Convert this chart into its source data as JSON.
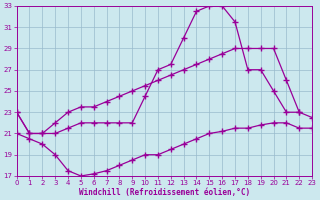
{
  "xlabel": "Windchill (Refroidissement éolien,°C)",
  "xlim": [
    0,
    23
  ],
  "ylim": [
    17,
    33
  ],
  "yticks": [
    17,
    19,
    21,
    23,
    25,
    27,
    29,
    31,
    33
  ],
  "xticks": [
    0,
    1,
    2,
    3,
    4,
    5,
    6,
    7,
    8,
    9,
    10,
    11,
    12,
    13,
    14,
    15,
    16,
    17,
    18,
    19,
    20,
    21,
    22,
    23
  ],
  "bg_color": "#cce8ee",
  "line_color": "#990099",
  "grid_color": "#99bbcc",
  "line1_x": [
    0,
    1,
    2,
    3,
    4,
    5,
    6,
    7,
    8,
    9,
    10,
    11,
    12,
    13,
    14,
    15,
    16,
    17,
    18,
    19,
    20,
    21,
    22
  ],
  "line1_y": [
    23,
    21,
    21,
    21,
    21.5,
    22,
    22,
    22,
    22,
    22,
    24.5,
    27,
    27.5,
    30,
    32.5,
    33,
    33,
    31.5,
    27,
    27,
    25,
    23,
    23
  ],
  "line2_x": [
    0,
    1,
    2,
    3,
    4,
    5,
    6,
    7,
    8,
    9,
    10,
    11,
    12,
    13,
    14,
    15,
    16,
    17,
    18,
    19,
    20,
    21,
    22,
    23
  ],
  "line2_y": [
    23,
    21,
    21,
    22,
    23,
    23.5,
    23.5,
    24,
    24.5,
    25,
    25.5,
    26,
    26.5,
    27,
    27.5,
    28,
    28.5,
    29,
    29,
    29,
    29,
    26,
    23,
    22.5
  ],
  "line3_x": [
    0,
    1,
    2,
    3,
    4,
    5,
    6,
    7,
    8,
    9,
    10,
    11,
    12,
    13,
    14,
    15,
    16,
    17,
    18,
    19,
    20,
    21,
    22,
    23
  ],
  "line3_y": [
    21,
    20.5,
    20,
    19,
    17.5,
    17,
    17.2,
    17.5,
    18,
    18.5,
    19,
    19,
    19.5,
    20,
    20.5,
    21,
    21.2,
    21.5,
    21.5,
    21.8,
    22,
    22,
    21.5,
    21.5
  ]
}
